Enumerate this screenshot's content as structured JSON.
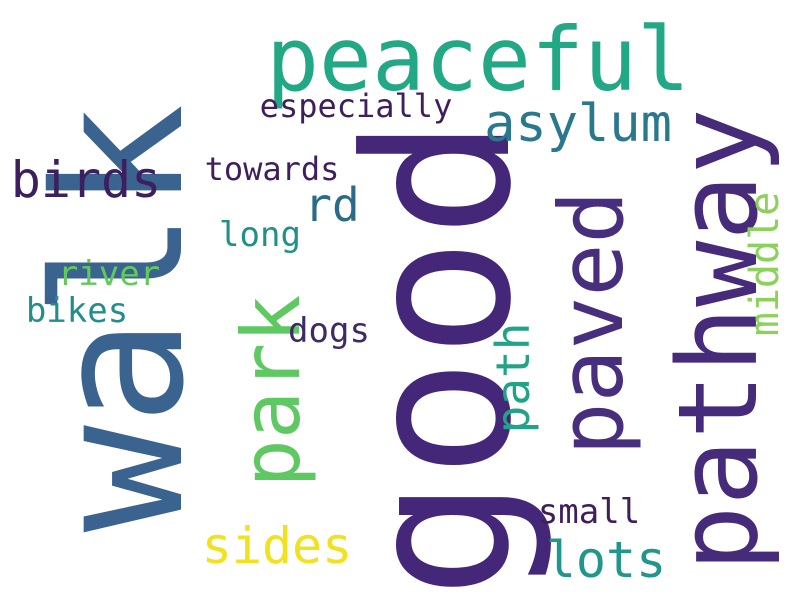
{
  "words": [
    {
      "text": "walk",
      "color": "#3b6390"
    },
    {
      "text": "good",
      "color": "#45277a"
    },
    {
      "text": "peaceful",
      "color": "#22a884"
    },
    {
      "text": "pathway",
      "color": "#462b7a"
    },
    {
      "text": "paved",
      "color": "#472f7d"
    },
    {
      "text": "park",
      "color": "#5ec962"
    },
    {
      "text": "asylum",
      "color": "#2a788e"
    },
    {
      "text": "birds",
      "color": "#3b1f5e"
    },
    {
      "text": "especially",
      "color": "#3e1f5c"
    },
    {
      "text": "towards",
      "color": "#3e1f5c"
    },
    {
      "text": "rd",
      "color": "#2c6a8a"
    },
    {
      "text": "long",
      "color": "#1f9188"
    },
    {
      "text": "river",
      "color": "#63c95a"
    },
    {
      "text": "bikes",
      "color": "#218e8c"
    },
    {
      "text": "dogs",
      "color": "#3f2a66"
    },
    {
      "text": "path",
      "color": "#20a386"
    },
    {
      "text": "middle",
      "color": "#8bd15a"
    },
    {
      "text": "sides",
      "color": "#f2e21d"
    },
    {
      "text": "lots",
      "color": "#21968b"
    },
    {
      "text": "small",
      "color": "#3e1f5c"
    }
  ]
}
